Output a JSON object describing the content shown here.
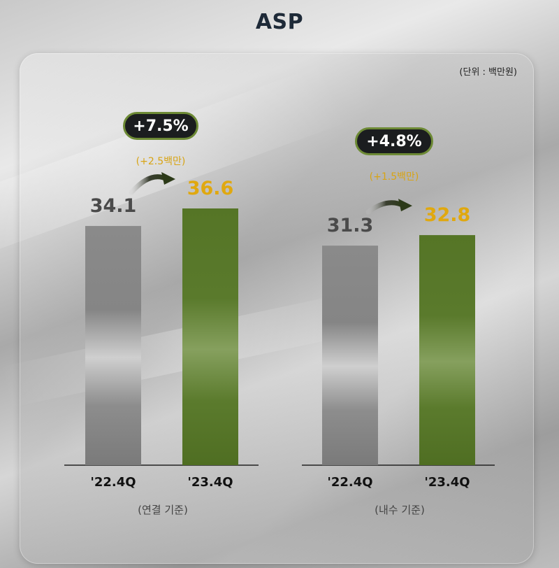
{
  "title": "ASP",
  "unit_note": "(단위 : 백만원)",
  "colors": {
    "prior_bar": "#8f8f8f",
    "current_bar": "#5a7a2c",
    "highlight_value": "#e0a80f",
    "bubble_bg": "#1b1d1f",
    "bubble_border": "#6d8a35"
  },
  "chart_data": [
    {
      "type": "bar",
      "group_label": "(연결 기준)",
      "categories": [
        "'22.4Q",
        "'23.4Q"
      ],
      "values": [
        34.1,
        36.6
      ],
      "value_labels": [
        "34.1",
        "36.6"
      ],
      "change_percent_label": "+7.5%",
      "change_amount_label": "(+2.5백만)",
      "ylim": [
        0,
        45
      ]
    },
    {
      "type": "bar",
      "group_label": "(내수 기준)",
      "categories": [
        "'22.4Q",
        "'23.4Q"
      ],
      "values": [
        31.3,
        32.8
      ],
      "value_labels": [
        "31.3",
        "32.8"
      ],
      "change_percent_label": "+4.8%",
      "change_amount_label": "(+1.5백만)",
      "ylim": [
        0,
        45
      ]
    }
  ]
}
